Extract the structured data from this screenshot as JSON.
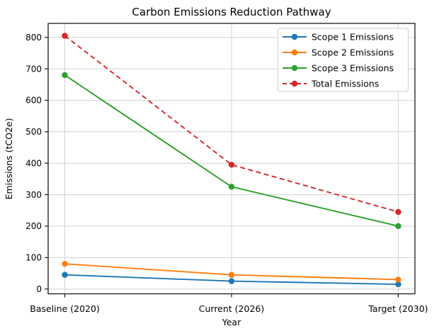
{
  "chart_data": {
    "type": "line",
    "title": "Carbon Emissions Reduction Pathway",
    "xlabel": "Year",
    "ylabel": "Emissions (tCO2e)",
    "categories": [
      "Baseline (2020)",
      "Current (2026)",
      "Target (2030)"
    ],
    "series": [
      {
        "name": "Scope 1 Emissions",
        "values": [
          45,
          25,
          15
        ],
        "color": "#1f77b4",
        "style": "solid",
        "marker": "circle"
      },
      {
        "name": "Scope 2 Emissions",
        "values": [
          80,
          45,
          30
        ],
        "color": "#ff7f0e",
        "style": "solid",
        "marker": "circle"
      },
      {
        "name": "Scope 3 Emissions",
        "values": [
          680,
          325,
          200
        ],
        "color": "#2ca02c",
        "style": "solid",
        "marker": "circle"
      },
      {
        "name": "Total Emissions",
        "values": [
          805,
          395,
          245
        ],
        "color": "#d62728",
        "style": "dashed",
        "marker": "circle"
      }
    ],
    "yticks": [
      0,
      100,
      200,
      300,
      400,
      500,
      600,
      700,
      800
    ],
    "ylim": [
      -15,
      845
    ],
    "grid": true,
    "legend_position": "upper right",
    "grid_color": "#d3d3d3",
    "spine_color": "#1a1a1a",
    "legend_border_color": "#cccccc"
  }
}
